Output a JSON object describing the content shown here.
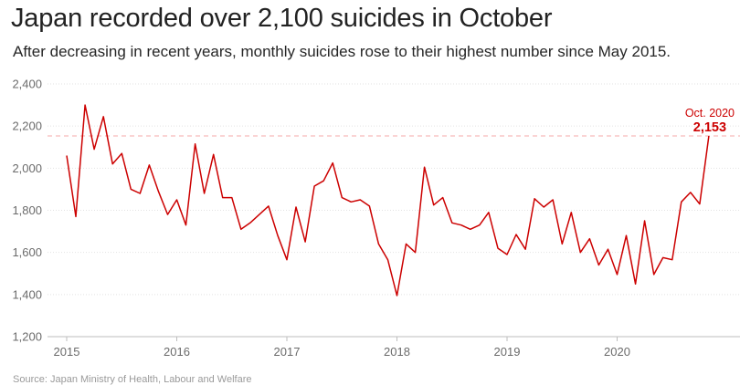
{
  "chart_data": {
    "type": "line",
    "title": "Japan recorded over 2,100 suicides in October",
    "subtitle": "After decreasing in recent years, monthly suicides rose to their highest number since May 2015.",
    "ylim": [
      1200,
      2400
    ],
    "yticks": [
      1200,
      1400,
      1600,
      1800,
      2000,
      2200,
      2400
    ],
    "ytick_labels": [
      "1,200",
      "1,400",
      "1,600",
      "1,800",
      "2,000",
      "2,200",
      "2,400"
    ],
    "xticks": [
      2015,
      2016,
      2017,
      2018,
      2019,
      2020
    ],
    "xtick_labels": [
      "2015",
      "2016",
      "2017",
      "2018",
      "2019",
      "2020"
    ],
    "grid": true,
    "line_color": "#cc0000",
    "reference_line": {
      "value": 2153,
      "color": "#f5a9a9",
      "style": "dashed"
    },
    "annotation": {
      "label": "Oct. 2020",
      "value_label": "2,153"
    },
    "series": [
      {
        "name": "Monthly suicides",
        "values": [
          2060,
          1770,
          2300,
          2090,
          2245,
          2020,
          2070,
          1900,
          1880,
          2015,
          1890,
          1780,
          1850,
          1730,
          2115,
          1880,
          2065,
          1860,
          1860,
          1710,
          1740,
          1780,
          1820,
          1680,
          1565,
          1815,
          1650,
          1915,
          1940,
          2025,
          1860,
          1840,
          1850,
          1820,
          1640,
          1565,
          1395,
          1640,
          1600,
          2005,
          1825,
          1860,
          1740,
          1730,
          1710,
          1730,
          1790,
          1620,
          1590,
          1685,
          1615,
          1855,
          1815,
          1850,
          1640,
          1790,
          1600,
          1665,
          1540,
          1615,
          1495,
          1680,
          1450,
          1750,
          1495,
          1575,
          1565,
          1840,
          1885,
          1830,
          2153
        ]
      }
    ]
  },
  "source": "Source: Japan Ministry of Health, Labour and Welfare"
}
